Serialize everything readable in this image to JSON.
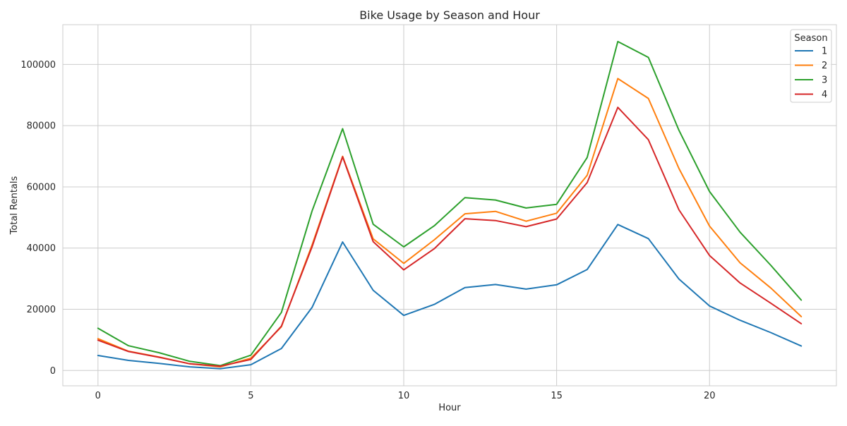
{
  "chart_data": {
    "type": "line",
    "title": "Bike Usage by Season and Hour",
    "xlabel": "Hour",
    "ylabel": "Total Rentals",
    "x": [
      0,
      1,
      2,
      3,
      4,
      5,
      6,
      7,
      8,
      9,
      10,
      11,
      12,
      13,
      14,
      15,
      16,
      17,
      18,
      19,
      20,
      21,
      22,
      23
    ],
    "xlim": [
      -1.15,
      24.15
    ],
    "ylim": [
      -5000,
      113000
    ],
    "xticks": [
      0,
      5,
      10,
      15,
      20
    ],
    "yticks": [
      0,
      20000,
      40000,
      60000,
      80000,
      100000
    ],
    "grid": true,
    "legend": {
      "title": "Season",
      "placement": "top-right"
    },
    "series": [
      {
        "name": "1",
        "color": "#1f77b4",
        "values": [
          4900,
          3300,
          2300,
          1200,
          600,
          1900,
          7200,
          20600,
          42000,
          26200,
          18000,
          21600,
          27100,
          28100,
          26600,
          28000,
          33000,
          47700,
          43100,
          29900,
          21100,
          16400,
          12400,
          8000
        ]
      },
      {
        "name": "2",
        "color": "#ff7f0e",
        "values": [
          10400,
          6300,
          4400,
          2200,
          1200,
          4000,
          14300,
          41000,
          70000,
          43000,
          35000,
          42700,
          51200,
          52000,
          48800,
          51400,
          63800,
          95400,
          88900,
          66000,
          47200,
          35200,
          27000,
          17600
        ]
      },
      {
        "name": "3",
        "color": "#2ca02c",
        "values": [
          13800,
          8100,
          5800,
          3000,
          1600,
          5000,
          19000,
          52100,
          79000,
          47800,
          40400,
          47300,
          56500,
          55700,
          53100,
          54300,
          69600,
          107500,
          102300,
          78500,
          58500,
          45200,
          34400,
          23000
        ]
      },
      {
        "name": "4",
        "color": "#d62728",
        "values": [
          9900,
          6200,
          4300,
          2200,
          1400,
          3600,
          14500,
          40400,
          69800,
          42100,
          32900,
          39800,
          49600,
          49000,
          47000,
          49500,
          61400,
          86000,
          75400,
          52500,
          37600,
          28600,
          22000,
          15300
        ]
      }
    ]
  }
}
